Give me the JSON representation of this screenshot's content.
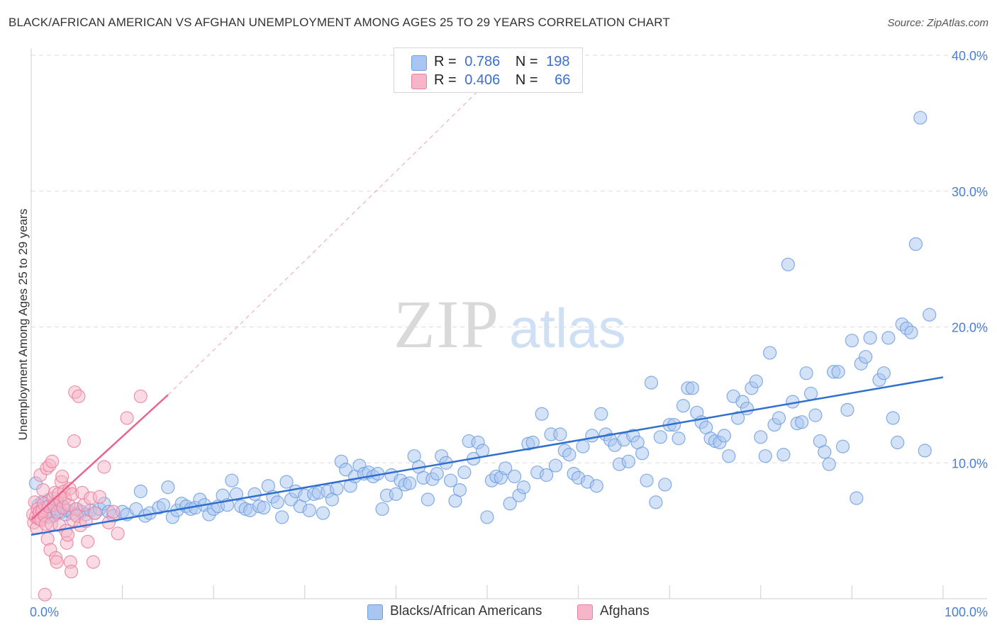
{
  "header": {
    "title": "BLACK/AFRICAN AMERICAN VS AFGHAN UNEMPLOYMENT AMONG AGES 25 TO 29 YEARS CORRELATION CHART",
    "source": "Source: ZipAtlas.com"
  },
  "watermark": {
    "zip": "ZIP",
    "atlas": "atlas"
  },
  "legend_top": {
    "rows": [
      {
        "r_label": "R =",
        "r_value": "0.786",
        "n_label": "N =",
        "n_value": "198",
        "color": "#a9c6f0"
      },
      {
        "r_label": "R =",
        "r_value": "0.406",
        "n_label": "N =",
        "n_value": "66",
        "color": "#f6b5c8"
      }
    ]
  },
  "legend_bottom": {
    "items": [
      {
        "label": "Blacks/African Americans",
        "color": "#a9c6f0"
      },
      {
        "label": "Afghans",
        "color": "#f6b5c8"
      }
    ]
  },
  "colors": {
    "blue_fill": "#a9c6f0",
    "blue_stroke": "#6f9fe3",
    "blue_line": "#2e6fd0",
    "pink_fill": "#f6b5c8",
    "pink_stroke": "#ec7fa0",
    "pink_line": "#e8648e",
    "grid": "#dddddd",
    "axis_tick": "#4a7fd4"
  },
  "chart_data": {
    "type": "scatter",
    "title": "BLACK/AFRICAN AMERICAN VS AFGHAN UNEMPLOYMENT AMONG AGES 25 TO 29 YEARS CORRELATION CHART",
    "xlabel": "",
    "ylabel": "Unemployment Among Ages 25 to 29 years",
    "xlim": [
      0,
      100
    ],
    "ylim": [
      0,
      40
    ],
    "x_tick_labels": [
      "0.0%",
      "100.0%"
    ],
    "y_ticks": [
      10,
      20,
      30,
      40
    ],
    "y_tick_labels": [
      "10.0%",
      "20.0%",
      "30.0%",
      "40.0%"
    ],
    "grid": true,
    "legend_position": "top-center",
    "series": [
      {
        "name": "Blacks/African Americans",
        "r": 0.786,
        "n": 198,
        "trend": {
          "x": [
            0,
            100
          ],
          "y": [
            4.7,
            16.3
          ]
        },
        "points": [
          [
            0.5,
            8.5
          ],
          [
            0.8,
            6.9
          ],
          [
            1.0,
            6.3
          ],
          [
            1.2,
            7.1
          ],
          [
            1.5,
            6.7
          ],
          [
            1.8,
            6.0
          ],
          [
            2.0,
            7.3
          ],
          [
            2.2,
            6.5
          ],
          [
            2.5,
            6.1
          ],
          [
            2.8,
            6.6
          ],
          [
            3.0,
            7.0
          ],
          [
            3.3,
            6.4
          ],
          [
            3.5,
            6.8
          ],
          [
            3.8,
            6.2
          ],
          [
            4.0,
            6.5
          ],
          [
            4.5,
            6.3
          ],
          [
            5.0,
            6.6
          ],
          [
            5.5,
            6.4
          ],
          [
            6.0,
            6.2
          ],
          [
            6.5,
            6.5
          ],
          [
            7.0,
            6.3
          ],
          [
            7.5,
            6.6
          ],
          [
            8.0,
            7.0
          ],
          [
            8.5,
            6.4
          ],
          [
            9.0,
            6.1
          ],
          [
            10.0,
            6.4
          ],
          [
            10.5,
            6.2
          ],
          [
            11.5,
            6.6
          ],
          [
            12.0,
            7.9
          ],
          [
            12.5,
            6.1
          ],
          [
            13.0,
            6.3
          ],
          [
            14.0,
            6.7
          ],
          [
            14.5,
            6.9
          ],
          [
            15.0,
            8.2
          ],
          [
            15.5,
            6.0
          ],
          [
            16.0,
            6.5
          ],
          [
            16.5,
            7.0
          ],
          [
            17.0,
            6.8
          ],
          [
            17.5,
            6.6
          ],
          [
            18.0,
            6.7
          ],
          [
            18.5,
            7.3
          ],
          [
            19.0,
            6.9
          ],
          [
            19.5,
            6.2
          ],
          [
            20.0,
            6.6
          ],
          [
            20.5,
            6.8
          ],
          [
            21.0,
            7.6
          ],
          [
            21.5,
            6.9
          ],
          [
            22.0,
            8.7
          ],
          [
            22.5,
            7.7
          ],
          [
            23.0,
            6.8
          ],
          [
            23.5,
            6.6
          ],
          [
            24.0,
            6.5
          ],
          [
            24.5,
            7.7
          ],
          [
            25.0,
            6.8
          ],
          [
            25.5,
            6.7
          ],
          [
            26.0,
            8.3
          ],
          [
            26.5,
            7.5
          ],
          [
            27.0,
            7.1
          ],
          [
            27.5,
            6.0
          ],
          [
            28.0,
            8.6
          ],
          [
            28.5,
            7.3
          ],
          [
            29.0,
            7.9
          ],
          [
            29.5,
            6.8
          ],
          [
            30.0,
            7.6
          ],
          [
            30.5,
            6.5
          ],
          [
            31.0,
            7.7
          ],
          [
            31.5,
            7.8
          ],
          [
            32.0,
            6.3
          ],
          [
            32.5,
            7.9
          ],
          [
            33.0,
            7.3
          ],
          [
            33.5,
            8.1
          ],
          [
            34.0,
            10.1
          ],
          [
            34.5,
            9.5
          ],
          [
            35.0,
            8.3
          ],
          [
            35.5,
            9.0
          ],
          [
            36.0,
            9.8
          ],
          [
            36.5,
            9.2
          ],
          [
            37.0,
            9.3
          ],
          [
            37.5,
            9.0
          ],
          [
            38.0,
            9.2
          ],
          [
            38.5,
            6.6
          ],
          [
            39.0,
            7.6
          ],
          [
            39.5,
            9.1
          ],
          [
            40.0,
            7.7
          ],
          [
            40.5,
            8.7
          ],
          [
            41.0,
            8.4
          ],
          [
            41.5,
            8.5
          ],
          [
            42.0,
            10.5
          ],
          [
            42.5,
            9.7
          ],
          [
            43.0,
            8.9
          ],
          [
            43.5,
            7.3
          ],
          [
            44.0,
            8.8
          ],
          [
            44.5,
            9.2
          ],
          [
            45.0,
            10.5
          ],
          [
            45.5,
            10.0
          ],
          [
            46.0,
            8.7
          ],
          [
            46.5,
            7.2
          ],
          [
            47.0,
            8.0
          ],
          [
            47.5,
            9.3
          ],
          [
            48.0,
            11.6
          ],
          [
            48.5,
            10.3
          ],
          [
            49.0,
            11.5
          ],
          [
            49.5,
            10.9
          ],
          [
            50.0,
            6.0
          ],
          [
            50.5,
            8.7
          ],
          [
            51.0,
            9.0
          ],
          [
            51.5,
            8.9
          ],
          [
            52.0,
            9.6
          ],
          [
            52.5,
            7.0
          ],
          [
            53.0,
            9.0
          ],
          [
            53.5,
            7.6
          ],
          [
            54.0,
            8.2
          ],
          [
            54.5,
            11.4
          ],
          [
            55.0,
            11.5
          ],
          [
            55.5,
            9.3
          ],
          [
            56.0,
            13.6
          ],
          [
            56.5,
            9.1
          ],
          [
            57.0,
            12.1
          ],
          [
            57.5,
            9.8
          ],
          [
            58.0,
            12.1
          ],
          [
            58.5,
            10.9
          ],
          [
            59.0,
            10.6
          ],
          [
            59.5,
            9.2
          ],
          [
            60.0,
            8.9
          ],
          [
            60.5,
            11.2
          ],
          [
            61.0,
            8.6
          ],
          [
            61.5,
            12.0
          ],
          [
            62.0,
            8.3
          ],
          [
            62.5,
            13.6
          ],
          [
            63.0,
            12.1
          ],
          [
            63.5,
            11.7
          ],
          [
            64.0,
            11.3
          ],
          [
            64.5,
            9.9
          ],
          [
            65.0,
            11.7
          ],
          [
            65.5,
            10.1
          ],
          [
            66.0,
            12.0
          ],
          [
            66.5,
            11.5
          ],
          [
            67.0,
            10.7
          ],
          [
            67.5,
            8.7
          ],
          [
            68.0,
            15.9
          ],
          [
            68.5,
            7.1
          ],
          [
            69.0,
            11.9
          ],
          [
            69.5,
            8.4
          ],
          [
            70.0,
            12.8
          ],
          [
            70.5,
            12.8
          ],
          [
            71.0,
            11.8
          ],
          [
            71.5,
            14.2
          ],
          [
            72.0,
            15.5
          ],
          [
            72.5,
            15.5
          ],
          [
            73.0,
            13.7
          ],
          [
            73.5,
            13.0
          ],
          [
            74.0,
            12.6
          ],
          [
            74.5,
            11.8
          ],
          [
            75.0,
            11.6
          ],
          [
            75.5,
            11.5
          ],
          [
            76.0,
            12.0
          ],
          [
            76.5,
            10.5
          ],
          [
            77.0,
            14.9
          ],
          [
            77.5,
            13.3
          ],
          [
            78.0,
            14.5
          ],
          [
            78.5,
            14.0
          ],
          [
            79.0,
            15.5
          ],
          [
            79.5,
            16.0
          ],
          [
            80.0,
            11.9
          ],
          [
            80.5,
            10.5
          ],
          [
            81.0,
            18.1
          ],
          [
            81.5,
            12.8
          ],
          [
            82.0,
            13.3
          ],
          [
            82.5,
            10.6
          ],
          [
            83.0,
            24.6
          ],
          [
            83.5,
            14.5
          ],
          [
            84.0,
            12.9
          ],
          [
            84.5,
            13.0
          ],
          [
            85.0,
            16.6
          ],
          [
            85.5,
            15.1
          ],
          [
            86.0,
            13.5
          ],
          [
            86.5,
            11.6
          ],
          [
            87.0,
            10.8
          ],
          [
            87.5,
            9.9
          ],
          [
            88.0,
            16.7
          ],
          [
            88.5,
            16.7
          ],
          [
            89.0,
            11.2
          ],
          [
            89.5,
            13.9
          ],
          [
            90.0,
            19.0
          ],
          [
            90.5,
            7.4
          ],
          [
            91.0,
            17.3
          ],
          [
            91.5,
            17.8
          ],
          [
            92.0,
            19.2
          ],
          [
            93.0,
            16.1
          ],
          [
            93.5,
            16.6
          ],
          [
            94.0,
            19.2
          ],
          [
            94.5,
            13.3
          ],
          [
            95.0,
            11.5
          ],
          [
            95.5,
            20.2
          ],
          [
            96.0,
            19.9
          ],
          [
            96.5,
            19.6
          ],
          [
            97.0,
            26.1
          ],
          [
            97.5,
            35.4
          ],
          [
            98.0,
            10.9
          ],
          [
            98.5,
            20.9
          ]
        ]
      },
      {
        "name": "Afghans",
        "r": 0.406,
        "n": 66,
        "trend": {
          "x": [
            0,
            15
          ],
          "y": [
            5.8,
            15.0
          ],
          "extended_dashed_to": {
            "x": 53,
            "y": 40.0
          }
        },
        "points": [
          [
            0.2,
            6.2
          ],
          [
            0.3,
            5.6
          ],
          [
            0.4,
            7.1
          ],
          [
            0.5,
            6.0
          ],
          [
            0.6,
            5.2
          ],
          [
            0.7,
            6.6
          ],
          [
            0.8,
            5.9
          ],
          [
            0.9,
            6.4
          ],
          [
            1.0,
            9.1
          ],
          [
            1.1,
            5.8
          ],
          [
            1.2,
            6.5
          ],
          [
            1.3,
            8.0
          ],
          [
            1.4,
            7.0
          ],
          [
            1.5,
            6.1
          ],
          [
            1.6,
            5.5
          ],
          [
            1.7,
            9.6
          ],
          [
            1.8,
            4.4
          ],
          [
            1.9,
            6.8
          ],
          [
            2.0,
            9.8
          ],
          [
            2.1,
            3.6
          ],
          [
            2.2,
            5.5
          ],
          [
            2.3,
            10.1
          ],
          [
            2.4,
            7.4
          ],
          [
            2.5,
            6.9
          ],
          [
            2.6,
            7.8
          ],
          [
            2.7,
            3.0
          ],
          [
            2.8,
            2.7
          ],
          [
            2.9,
            6.4
          ],
          [
            3.0,
            7.7
          ],
          [
            3.1,
            5.4
          ],
          [
            3.2,
            7.2
          ],
          [
            3.3,
            8.6
          ],
          [
            3.4,
            9.0
          ],
          [
            3.5,
            6.7
          ],
          [
            3.6,
            7.9
          ],
          [
            3.7,
            7.4
          ],
          [
            3.8,
            5.0
          ],
          [
            3.9,
            4.1
          ],
          [
            4.0,
            4.7
          ],
          [
            4.1,
            6.9
          ],
          [
            4.2,
            8.1
          ],
          [
            4.3,
            2.7
          ],
          [
            4.4,
            2.0
          ],
          [
            4.5,
            7.7
          ],
          [
            4.6,
            5.8
          ],
          [
            4.7,
            11.6
          ],
          [
            4.8,
            15.2
          ],
          [
            4.9,
            6.6
          ],
          [
            5.0,
            6.1
          ],
          [
            5.2,
            14.9
          ],
          [
            5.4,
            5.4
          ],
          [
            5.6,
            7.8
          ],
          [
            5.8,
            6.9
          ],
          [
            6.0,
            5.7
          ],
          [
            6.2,
            4.2
          ],
          [
            6.5,
            7.4
          ],
          [
            6.8,
            2.7
          ],
          [
            7.0,
            6.3
          ],
          [
            7.5,
            7.5
          ],
          [
            8.0,
            9.7
          ],
          [
            8.5,
            5.6
          ],
          [
            9.0,
            6.4
          ],
          [
            9.5,
            4.8
          ],
          [
            10.5,
            13.3
          ],
          [
            12.0,
            14.9
          ],
          [
            1.5,
            0.3
          ]
        ]
      }
    ]
  }
}
